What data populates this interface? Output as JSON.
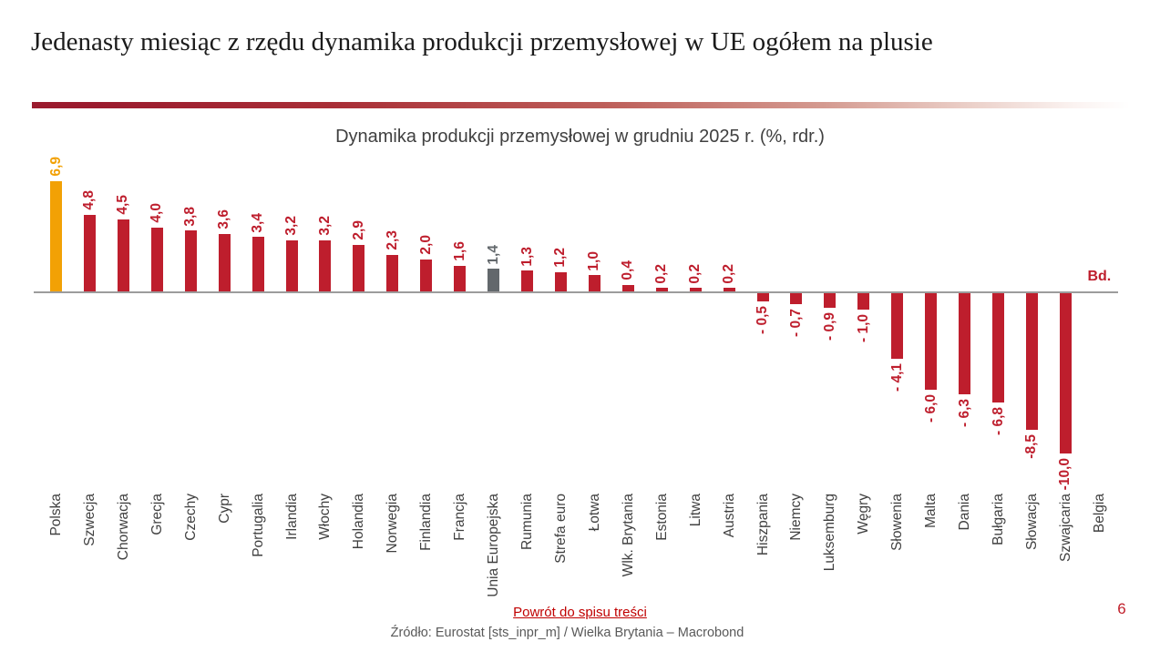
{
  "slide": {
    "title": "Jedenasty miesiąc z rzędu dynamika produkcji przemysłowej w UE ogółem na plusie",
    "footer_link": "Powrót do spisu treści",
    "source": "Źródło: Eurostat [sts_inpr_m] / Wielka Brytania – Macrobond",
    "page_number": "6"
  },
  "chart_data": {
    "type": "bar",
    "orientation": "vertical",
    "title": "Dynamika produkcji przemysłowej w grudniu 2025 r. (%, rdr.)",
    "unit": "%, rdr.",
    "decimal_separator": ",",
    "grid": false,
    "legend": false,
    "ylim": [
      -10.5,
      7.5
    ],
    "categories": [
      "Polska",
      "Szwecja",
      "Chorwacja",
      "Grecja",
      "Czechy",
      "Cypr",
      "Portugalia",
      "Irlandia",
      "Włochy",
      "Holandia",
      "Norwegia",
      "Finlandia",
      "Francja",
      "Unia Europejska",
      "Rumunia",
      "Strefa euro",
      "Łotwa",
      "Wlk. Brytania",
      "Estonia",
      "Litwa",
      "Austria",
      "Hiszpania",
      "Niemcy",
      "Luksemburg",
      "Węgry",
      "Słowenia",
      "Malta",
      "Dania",
      "Bułgaria",
      "Słowacja",
      "Szwajcaria",
      "Belgia"
    ],
    "values": [
      6.9,
      4.8,
      4.5,
      4.0,
      3.8,
      3.6,
      3.4,
      3.2,
      3.2,
      2.9,
      2.3,
      2.0,
      1.6,
      1.4,
      1.3,
      1.2,
      1.0,
      0.4,
      0.2,
      0.2,
      0.2,
      -0.5,
      -0.7,
      -0.9,
      -1.0,
      -4.1,
      -6.0,
      -6.3,
      -6.8,
      -8.5,
      -10.0,
      null
    ],
    "value_labels": [
      "6,9",
      "4,8",
      "4,5",
      "4,0",
      "3,8",
      "3,6",
      "3,4",
      "3,2",
      "3,2",
      "2,9",
      "2,3",
      "2,0",
      "1,6",
      "1,4",
      "1,3",
      "1,2",
      "1,0",
      "0,4",
      "0,2",
      "0,2",
      "0,2",
      "- 0,5",
      "- 0,7",
      "- 0,9",
      "- 1,0",
      "- 4,1",
      "- 6,0",
      "- 6,3",
      "- 6,8",
      "-8,5",
      "-10,0",
      "Bd."
    ],
    "roles": [
      "highlight",
      "default",
      "default",
      "default",
      "default",
      "default",
      "default",
      "default",
      "default",
      "default",
      "default",
      "default",
      "default",
      "aggregate",
      "default",
      "default",
      "default",
      "default",
      "default",
      "default",
      "default",
      "default",
      "default",
      "default",
      "default",
      "default",
      "default",
      "default",
      "default",
      "default",
      "default",
      "no_data"
    ],
    "no_data": {
      "category": "Belgia",
      "label": "Bd."
    },
    "colors": {
      "bar_default": "#be1e2d",
      "bar_highlight": "#f2a105",
      "bar_aggregate": "#63686c",
      "value_default": "#be1e2d",
      "value_highlight": "#f2a105",
      "value_aggregate": "#63686c",
      "no_data_text": "#be1e2d",
      "category_text": "#404040",
      "axis_line": "#9c9c9c",
      "divider_red": "#9b1b2e",
      "link": "#c00000",
      "source_text": "#595959",
      "page_number": "#c1202b"
    }
  }
}
